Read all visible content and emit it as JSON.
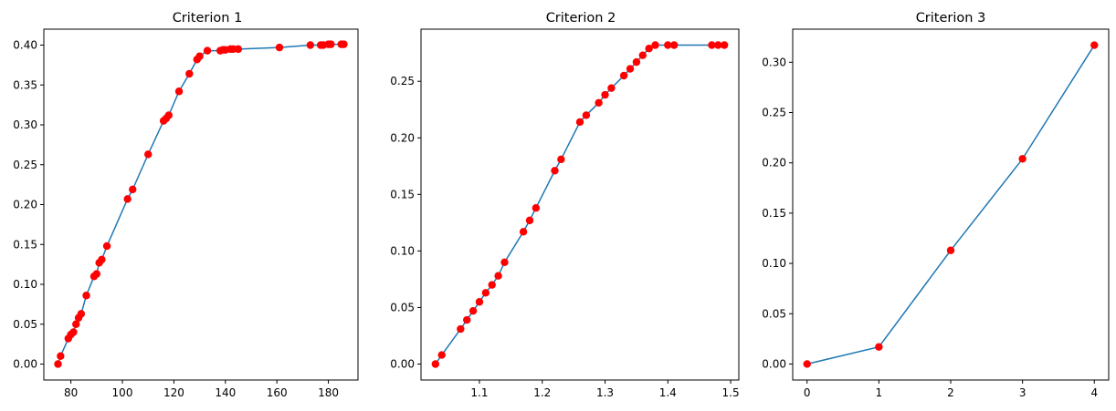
{
  "colors": {
    "line": "#1f77b4",
    "marker": "#ff0000",
    "axes": "#000000",
    "background": "#ffffff"
  },
  "chart_data": [
    {
      "type": "line",
      "title": "Criterion 1",
      "xlabel": "",
      "ylabel": "",
      "xlim": [
        69.5,
        191.5
      ],
      "ylim": [
        -0.02,
        0.42
      ],
      "xticks": [
        80,
        100,
        120,
        140,
        160,
        180
      ],
      "yticks": [
        0.0,
        0.05,
        0.1,
        0.15,
        0.2,
        0.25,
        0.3,
        0.35,
        0.4
      ],
      "xtick_labels": [
        "80",
        "100",
        "120",
        "140",
        "160",
        "180"
      ],
      "ytick_labels": [
        "0.00",
        "0.05",
        "0.10",
        "0.15",
        "0.20",
        "0.25",
        "0.30",
        "0.35",
        "0.40"
      ],
      "grid": false,
      "legend": "none",
      "series": [
        {
          "name": "",
          "marker": "o",
          "x": [
            75,
            76,
            79,
            80,
            81,
            82,
            83,
            84,
            86,
            89,
            90,
            91,
            92,
            94,
            102,
            104,
            110,
            116,
            117,
            118,
            122,
            126,
            129,
            130,
            133,
            138,
            139,
            140,
            142,
            143,
            145,
            161,
            173,
            177,
            178,
            180,
            181,
            185,
            186
          ],
          "y": [
            0.0,
            0.01,
            0.032,
            0.037,
            0.04,
            0.05,
            0.058,
            0.063,
            0.086,
            0.11,
            0.113,
            0.127,
            0.131,
            0.148,
            0.207,
            0.219,
            0.263,
            0.305,
            0.308,
            0.312,
            0.342,
            0.364,
            0.382,
            0.386,
            0.393,
            0.393,
            0.394,
            0.394,
            0.395,
            0.395,
            0.395,
            0.397,
            0.4,
            0.4,
            0.4,
            0.401,
            0.401,
            0.401,
            0.401
          ]
        }
      ]
    },
    {
      "type": "line",
      "title": "Criterion 2",
      "xlabel": "",
      "ylabel": "",
      "xlim": [
        1.007,
        1.513
      ],
      "ylim": [
        -0.0141,
        0.2961
      ],
      "xticks": [
        1.1,
        1.2,
        1.3,
        1.4,
        1.5
      ],
      "yticks": [
        0.0,
        0.05,
        0.1,
        0.15,
        0.2,
        0.25
      ],
      "xtick_labels": [
        "1.1",
        "1.2",
        "1.3",
        "1.4",
        "1.5"
      ],
      "ytick_labels": [
        "0.00",
        "0.05",
        "0.10",
        "0.15",
        "0.20",
        "0.25"
      ],
      "grid": false,
      "legend": "none",
      "series": [
        {
          "name": "",
          "marker": "o",
          "x": [
            1.03,
            1.04,
            1.07,
            1.08,
            1.09,
            1.1,
            1.11,
            1.12,
            1.13,
            1.14,
            1.17,
            1.18,
            1.19,
            1.22,
            1.23,
            1.26,
            1.27,
            1.29,
            1.3,
            1.31,
            1.33,
            1.34,
            1.35,
            1.36,
            1.37,
            1.38,
            1.4,
            1.41,
            1.47,
            1.48,
            1.49
          ],
          "y": [
            0.0,
            0.008,
            0.031,
            0.039,
            0.047,
            0.055,
            0.063,
            0.07,
            0.078,
            0.09,
            0.117,
            0.127,
            0.138,
            0.171,
            0.181,
            0.214,
            0.22,
            0.231,
            0.238,
            0.244,
            0.255,
            0.261,
            0.267,
            0.273,
            0.279,
            0.282,
            0.282,
            0.282,
            0.282,
            0.282,
            0.282
          ]
        }
      ]
    },
    {
      "type": "line",
      "title": "Criterion 3",
      "xlabel": "",
      "ylabel": "",
      "xlim": [
        -0.2,
        4.2
      ],
      "ylim": [
        -0.0159,
        0.3329
      ],
      "xticks": [
        0,
        1,
        2,
        3,
        4
      ],
      "yticks": [
        0.0,
        0.05,
        0.1,
        0.15,
        0.2,
        0.25,
        0.3
      ],
      "xtick_labels": [
        "0",
        "1",
        "2",
        "3",
        "4"
      ],
      "ytick_labels": [
        "0.00",
        "0.05",
        "0.10",
        "0.15",
        "0.20",
        "0.25",
        "0.30"
      ],
      "grid": false,
      "legend": "none",
      "series": [
        {
          "name": "",
          "marker": "o",
          "x": [
            0,
            1,
            2,
            3,
            4
          ],
          "y": [
            0.0,
            0.017,
            0.113,
            0.204,
            0.317
          ]
        }
      ]
    }
  ]
}
